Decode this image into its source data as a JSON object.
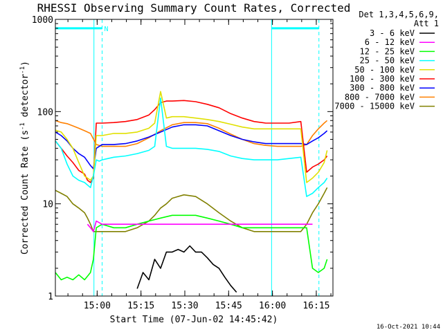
{
  "chart_data": {
    "type": "line",
    "title": "RHESSI Observing Summary Count Rates, Corrected",
    "xlabel": "Start Time (07-Jun-02 14:45:42)",
    "ylabel_prefix": "Corrected Count Rate (s",
    "ylabel_sup1": "-1",
    "ylabel_mid": " detector",
    "ylabel_sup2": "-1",
    "ylabel_suffix": ")",
    "yscale": "log",
    "ylim": [
      1,
      1000
    ],
    "xlim_minutes": [
      0,
      95
    ],
    "x_ticks": [
      {
        "label": "15:00",
        "minute": 14.3
      },
      {
        "label": "15:15",
        "minute": 29.3
      },
      {
        "label": "15:30",
        "minute": 44.3
      },
      {
        "label": "15:45",
        "minute": 59.3
      },
      {
        "label": "16:00",
        "minute": 74.3
      },
      {
        "label": "16:15",
        "minute": 89.3
      }
    ],
    "y_ticks": [
      {
        "label": "1",
        "value": 1
      },
      {
        "label": "10",
        "value": 10
      },
      {
        "label": "100",
        "value": 100
      },
      {
        "label": "1000",
        "value": 1000
      }
    ],
    "legend_header": [
      "Det 1,3,4,5,6,9,",
      "Att 1"
    ],
    "attenuator_flag": "N",
    "attenuator_level": 800,
    "night_boundaries_minutes": [
      13.2,
      16.0,
      74.0,
      90.2
    ],
    "series": [
      {
        "name": "3 - 6 keV",
        "color": "#000000",
        "x": [
          28,
          30,
          32,
          34,
          36,
          38,
          40,
          42,
          44,
          46,
          48,
          50,
          52,
          54,
          56,
          58,
          60,
          62
        ],
        "y": [
          1.2,
          1.8,
          1.5,
          2.5,
          2,
          3,
          3,
          3.2,
          3,
          3.5,
          3,
          3,
          2.6,
          2.2,
          2,
          1.6,
          1.3,
          1.1
        ]
      },
      {
        "name": "6 - 12 keV",
        "color": "#ff00ff",
        "x": [
          11,
          12,
          13,
          14,
          16,
          20,
          24,
          28,
          32,
          36,
          40,
          44,
          48,
          52,
          56,
          60,
          64,
          68,
          72,
          76,
          80,
          84,
          86,
          88
        ],
        "y": [
          6,
          5.5,
          5,
          6.5,
          6,
          6,
          6,
          6,
          6,
          6,
          6,
          6,
          6,
          6,
          6,
          6,
          6,
          6,
          6,
          6,
          6,
          6,
          6,
          6
        ]
      },
      {
        "name": "12 - 25 keV",
        "color": "#00ff00",
        "x": [
          0,
          2,
          4,
          6,
          8,
          10,
          12,
          13,
          14,
          16,
          20,
          24,
          28,
          32,
          36,
          40,
          44,
          48,
          52,
          56,
          60,
          64,
          68,
          72,
          76,
          80,
          84,
          86,
          88,
          90,
          92,
          93
        ],
        "y": [
          1.8,
          1.5,
          1.6,
          1.5,
          1.7,
          1.5,
          1.8,
          2.5,
          5.5,
          6,
          5.5,
          5.5,
          6,
          6.5,
          7,
          7.5,
          7.5,
          7.5,
          7,
          6.5,
          6,
          5.5,
          5.5,
          5.5,
          5.5,
          5.5,
          5.5,
          5.5,
          2,
          1.8,
          2,
          2.5
        ]
      },
      {
        "name": "25 - 50 keV",
        "color": "#00ffff",
        "x": [
          0,
          2,
          4,
          6,
          8,
          10,
          11,
          12,
          13,
          14,
          15,
          16,
          18,
          20,
          24,
          28,
          32,
          34,
          36,
          38,
          40,
          44,
          48,
          52,
          56,
          60,
          64,
          68,
          72,
          76,
          80,
          84,
          86,
          88,
          90,
          92,
          93
        ],
        "y": [
          48,
          40,
          27,
          20,
          18,
          17,
          16,
          15,
          20,
          30,
          29,
          30,
          31,
          32,
          33,
          35,
          38,
          42,
          140,
          42,
          40,
          40,
          40,
          39,
          37,
          33,
          31,
          30,
          30,
          30,
          31,
          32,
          12,
          13,
          15,
          17,
          19
        ]
      },
      {
        "name": "50 - 100 keV",
        "color": "#e0e000",
        "x": [
          0,
          2,
          4,
          6,
          8,
          10,
          11,
          12,
          13,
          14,
          16,
          20,
          24,
          28,
          32,
          34,
          36,
          38,
          40,
          44,
          48,
          52,
          56,
          60,
          64,
          68,
          72,
          76,
          80,
          84,
          86,
          88,
          90,
          92,
          93
        ],
        "y": [
          63,
          60,
          50,
          40,
          28,
          20,
          19,
          18,
          20,
          55,
          55,
          58,
          58,
          60,
          66,
          75,
          165,
          85,
          88,
          88,
          85,
          82,
          78,
          73,
          68,
          65,
          65,
          65,
          65,
          65,
          17,
          19,
          22,
          28,
          38
        ]
      },
      {
        "name": "100 - 300 keV",
        "color": "#ff0000",
        "x": [
          0,
          2,
          4,
          6,
          8,
          10,
          11,
          12,
          13,
          14,
          16,
          20,
          24,
          28,
          32,
          34,
          36,
          38,
          40,
          44,
          48,
          52,
          56,
          60,
          64,
          68,
          72,
          76,
          80,
          84,
          86,
          88,
          90,
          92,
          93
        ],
        "y": [
          48,
          40,
          33,
          28,
          23,
          21,
          18,
          17,
          19,
          75,
          75,
          76,
          78,
          82,
          92,
          105,
          125,
          130,
          130,
          132,
          128,
          120,
          110,
          95,
          85,
          78,
          75,
          75,
          75,
          78,
          22,
          25,
          27,
          30,
          33
        ]
      },
      {
        "name": "300 - 800 keV",
        "color": "#0000ff",
        "x": [
          0,
          2,
          4,
          6,
          8,
          10,
          12,
          13,
          14,
          16,
          20,
          24,
          28,
          32,
          36,
          40,
          44,
          48,
          52,
          56,
          60,
          64,
          68,
          72,
          76,
          80,
          84,
          86,
          88,
          90,
          92,
          93
        ],
        "y": [
          60,
          55,
          48,
          40,
          35,
          32,
          26,
          24,
          40,
          44,
          44,
          45,
          48,
          53,
          60,
          68,
          72,
          72,
          70,
          62,
          55,
          50,
          47,
          45,
          45,
          45,
          45,
          44,
          48,
          52,
          58,
          62
        ]
      },
      {
        "name": "800 - 7000 keV",
        "color": "#ff8000",
        "x": [
          0,
          2,
          4,
          6,
          8,
          10,
          12,
          14,
          16,
          20,
          24,
          28,
          32,
          36,
          40,
          44,
          48,
          52,
          56,
          60,
          64,
          68,
          72,
          76,
          80,
          84,
          86,
          88,
          90,
          92,
          93
        ],
        "y": [
          80,
          76,
          74,
          70,
          66,
          62,
          58,
          44,
          42,
          42,
          42,
          45,
          52,
          62,
          72,
          76,
          76,
          74,
          66,
          57,
          50,
          45,
          43,
          42,
          42,
          42,
          44,
          55,
          65,
          75,
          80
        ]
      },
      {
        "name": "7000 - 15000 keV",
        "color": "#808000",
        "x": [
          0,
          2,
          4,
          6,
          8,
          10,
          11,
          12,
          13,
          14,
          16,
          20,
          24,
          28,
          32,
          34,
          36,
          38,
          40,
          44,
          48,
          52,
          56,
          60,
          64,
          68,
          72,
          76,
          80,
          84,
          86,
          88,
          90,
          92,
          93
        ],
        "y": [
          14,
          13,
          12,
          10,
          9,
          8,
          7,
          6,
          5,
          5,
          5,
          5,
          5,
          5.5,
          6.5,
          7.5,
          9,
          10,
          11.5,
          12.5,
          12,
          10,
          8,
          6.5,
          5.5,
          5,
          5,
          5,
          5,
          5,
          6,
          8,
          10,
          13,
          15
        ]
      }
    ]
  },
  "footer_timestamp": "16-Oct-2021 10:44"
}
